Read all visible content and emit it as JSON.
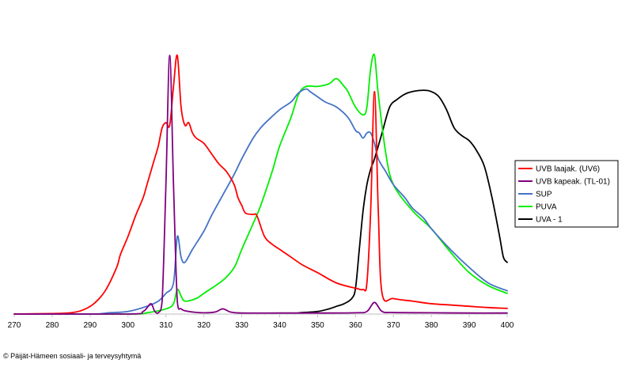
{
  "chart_data": {
    "type": "line",
    "title": "",
    "xlabel": "",
    "ylabel": "",
    "xlim": [
      270,
      400
    ],
    "ylim": [
      0,
      1
    ],
    "x_ticks": [
      270,
      280,
      290,
      300,
      310,
      320,
      330,
      340,
      350,
      360,
      370,
      380,
      390,
      400
    ],
    "grid": false,
    "legend_position": "right",
    "series": [
      {
        "name": "UVB laajak. (UV6)",
        "color": "#ff0000",
        "points": [
          [
            270,
            0
          ],
          [
            280,
            0.002
          ],
          [
            285,
            0.005
          ],
          [
            288,
            0.015
          ],
          [
            291,
            0.04
          ],
          [
            294,
            0.09
          ],
          [
            297,
            0.18
          ],
          [
            298,
            0.23
          ],
          [
            300,
            0.3
          ],
          [
            302,
            0.38
          ],
          [
            304,
            0.45
          ],
          [
            305,
            0.5
          ],
          [
            307,
            0.6
          ],
          [
            308,
            0.65
          ],
          [
            309,
            0.72
          ],
          [
            310,
            0.74
          ],
          [
            311,
            0.73
          ],
          [
            312,
            0.88
          ],
          [
            313,
            1.0
          ],
          [
            314,
            0.8
          ],
          [
            315,
            0.73
          ],
          [
            316,
            0.74
          ],
          [
            317,
            0.7
          ],
          [
            318,
            0.68
          ],
          [
            320,
            0.66
          ],
          [
            322,
            0.62
          ],
          [
            324,
            0.58
          ],
          [
            326,
            0.55
          ],
          [
            328,
            0.5
          ],
          [
            329,
            0.45
          ],
          [
            330,
            0.42
          ],
          [
            331,
            0.39
          ],
          [
            333,
            0.385
          ],
          [
            334,
            0.38
          ],
          [
            336,
            0.3
          ],
          [
            338,
            0.27
          ],
          [
            340,
            0.25
          ],
          [
            343,
            0.22
          ],
          [
            346,
            0.19
          ],
          [
            350,
            0.16
          ],
          [
            355,
            0.12
          ],
          [
            360,
            0.1
          ],
          [
            362,
            0.095
          ],
          [
            363,
            0.12
          ],
          [
            364,
            0.4
          ],
          [
            365,
            0.86
          ],
          [
            366,
            0.4
          ],
          [
            367,
            0.08
          ],
          [
            370,
            0.06
          ],
          [
            375,
            0.05
          ],
          [
            380,
            0.04
          ],
          [
            385,
            0.035
          ],
          [
            390,
            0.03
          ],
          [
            395,
            0.025
          ],
          [
            400,
            0.022
          ]
        ]
      },
      {
        "name": "UVB kapeak. (TL-01)",
        "color": "#800080",
        "points": [
          [
            270,
            0
          ],
          [
            300,
            0
          ],
          [
            304,
            0.01
          ],
          [
            306,
            0.04
          ],
          [
            307,
            0.012
          ],
          [
            308,
            0.005
          ],
          [
            309,
            0.05
          ],
          [
            310,
            0.5
          ],
          [
            311,
            1.0
          ],
          [
            312,
            0.5
          ],
          [
            313,
            0.05
          ],
          [
            314,
            0.02
          ],
          [
            316,
            0.01
          ],
          [
            320,
            0.005
          ],
          [
            323,
            0.008
          ],
          [
            325,
            0.02
          ],
          [
            327,
            0.008
          ],
          [
            330,
            0.004
          ],
          [
            340,
            0.004
          ],
          [
            350,
            0.004
          ],
          [
            360,
            0.005
          ],
          [
            363,
            0.01
          ],
          [
            365,
            0.045
          ],
          [
            367,
            0.01
          ],
          [
            370,
            0.006
          ],
          [
            380,
            0.005
          ],
          [
            390,
            0.004
          ],
          [
            400,
            0.004
          ]
        ]
      },
      {
        "name": "SUP",
        "color": "#4472c4",
        "points": [
          [
            270,
            0
          ],
          [
            290,
            0
          ],
          [
            295,
            0.005
          ],
          [
            300,
            0.01
          ],
          [
            305,
            0.03
          ],
          [
            308,
            0.05
          ],
          [
            310,
            0.08
          ],
          [
            312,
            0.12
          ],
          [
            313,
            0.3
          ],
          [
            314,
            0.22
          ],
          [
            315,
            0.2
          ],
          [
            317,
            0.25
          ],
          [
            320,
            0.32
          ],
          [
            322,
            0.38
          ],
          [
            325,
            0.46
          ],
          [
            328,
            0.54
          ],
          [
            330,
            0.6
          ],
          [
            333,
            0.68
          ],
          [
            335,
            0.72
          ],
          [
            337,
            0.75
          ],
          [
            340,
            0.79
          ],
          [
            343,
            0.82
          ],
          [
            345,
            0.855
          ],
          [
            347,
            0.87
          ],
          [
            348,
            0.86
          ],
          [
            350,
            0.84
          ],
          [
            352,
            0.82
          ],
          [
            355,
            0.8
          ],
          [
            358,
            0.76
          ],
          [
            360,
            0.71
          ],
          [
            361,
            0.7
          ],
          [
            362,
            0.68
          ],
          [
            363,
            0.7
          ],
          [
            364,
            0.7
          ],
          [
            365,
            0.66
          ],
          [
            366,
            0.6
          ],
          [
            368,
            0.55
          ],
          [
            370,
            0.5
          ],
          [
            373,
            0.45
          ],
          [
            375,
            0.41
          ],
          [
            378,
            0.37
          ],
          [
            380,
            0.33
          ],
          [
            385,
            0.25
          ],
          [
            390,
            0.18
          ],
          [
            395,
            0.12
          ],
          [
            400,
            0.09
          ]
        ]
      },
      {
        "name": "PUVA",
        "color": "#00ee00",
        "points": [
          [
            270,
            0
          ],
          [
            300,
            0
          ],
          [
            305,
            0.005
          ],
          [
            310,
            0.02
          ],
          [
            312,
            0.04
          ],
          [
            313,
            0.095
          ],
          [
            314,
            0.07
          ],
          [
            315,
            0.05
          ],
          [
            318,
            0.06
          ],
          [
            320,
            0.08
          ],
          [
            325,
            0.13
          ],
          [
            328,
            0.18
          ],
          [
            330,
            0.25
          ],
          [
            333,
            0.35
          ],
          [
            335,
            0.42
          ],
          [
            338,
            0.55
          ],
          [
            340,
            0.65
          ],
          [
            343,
            0.76
          ],
          [
            345,
            0.85
          ],
          [
            347,
            0.88
          ],
          [
            350,
            0.88
          ],
          [
            353,
            0.89
          ],
          [
            355,
            0.91
          ],
          [
            357,
            0.88
          ],
          [
            358,
            0.86
          ],
          [
            360,
            0.8
          ],
          [
            362,
            0.77
          ],
          [
            363,
            0.8
          ],
          [
            364,
            0.95
          ],
          [
            365,
            1.0
          ],
          [
            366,
            0.85
          ],
          [
            368,
            0.62
          ],
          [
            370,
            0.5
          ],
          [
            375,
            0.4
          ],
          [
            380,
            0.33
          ],
          [
            385,
            0.24
          ],
          [
            390,
            0.16
          ],
          [
            395,
            0.11
          ],
          [
            400,
            0.08
          ]
        ]
      },
      {
        "name": "UVA - 1",
        "color": "#000000",
        "points": [
          [
            345,
            0.005
          ],
          [
            350,
            0.01
          ],
          [
            353,
            0.02
          ],
          [
            355,
            0.03
          ],
          [
            357,
            0.04
          ],
          [
            359,
            0.06
          ],
          [
            360,
            0.1
          ],
          [
            361,
            0.25
          ],
          [
            362,
            0.4
          ],
          [
            363,
            0.5
          ],
          [
            364,
            0.56
          ],
          [
            365,
            0.6
          ],
          [
            367,
            0.7
          ],
          [
            369,
            0.8
          ],
          [
            371,
            0.83
          ],
          [
            373,
            0.85
          ],
          [
            375,
            0.86
          ],
          [
            378,
            0.865
          ],
          [
            380,
            0.86
          ],
          [
            382,
            0.84
          ],
          [
            384,
            0.79
          ],
          [
            386,
            0.72
          ],
          [
            388,
            0.69
          ],
          [
            390,
            0.67
          ],
          [
            392,
            0.63
          ],
          [
            394,
            0.57
          ],
          [
            396,
            0.45
          ],
          [
            398,
            0.3
          ],
          [
            399,
            0.22
          ],
          [
            400,
            0.2
          ]
        ]
      }
    ]
  },
  "footer": {
    "copyright": "© Päijät-Hämeen sosiaali- ja terveysyhtymä"
  }
}
